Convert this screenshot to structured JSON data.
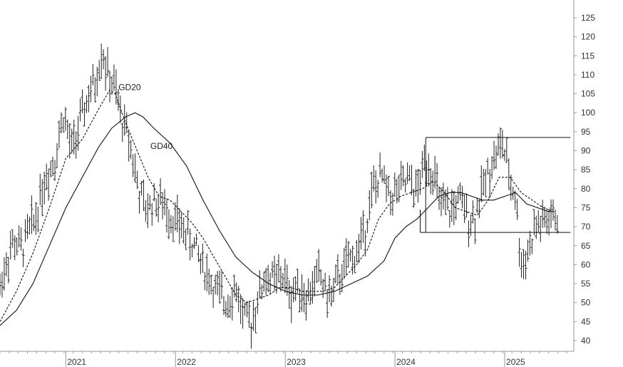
{
  "chart_data": {
    "type": "ohlc",
    "title": "",
    "xlabel": "",
    "ylabel": "",
    "ylim": [
      37,
      128
    ],
    "y_ticks": [
      40,
      45,
      50,
      55,
      60,
      65,
      70,
      75,
      80,
      85,
      90,
      95,
      100,
      105,
      110,
      115,
      120,
      125
    ],
    "x_range": [
      2020.4,
      2025.63
    ],
    "x_ticks": [
      {
        "year": 2021,
        "label": "2021"
      },
      {
        "year": 2022,
        "label": "2022"
      },
      {
        "year": 2023,
        "label": "2023"
      },
      {
        "year": 2024,
        "label": "2024"
      },
      {
        "year": 2025,
        "label": "2025"
      }
    ],
    "grid": false,
    "price_anchors": [
      [
        2020.4,
        54
      ],
      [
        2020.45,
        60
      ],
      [
        2020.52,
        66
      ],
      [
        2020.6,
        64
      ],
      [
        2020.65,
        68
      ],
      [
        2020.72,
        72
      ],
      [
        2020.8,
        82
      ],
      [
        2020.9,
        88
      ],
      [
        2020.98,
        100
      ],
      [
        2021.05,
        90
      ],
      [
        2021.12,
        96
      ],
      [
        2021.2,
        104
      ],
      [
        2021.27,
        108
      ],
      [
        2021.33,
        117
      ],
      [
        2021.38,
        110
      ],
      [
        2021.45,
        106
      ],
      [
        2021.5,
        99
      ],
      [
        2021.58,
        93
      ],
      [
        2021.66,
        80
      ],
      [
        2021.73,
        74
      ],
      [
        2021.8,
        77
      ],
      [
        2021.88,
        76
      ],
      [
        2021.98,
        72
      ],
      [
        2022.05,
        70
      ],
      [
        2022.15,
        66
      ],
      [
        2022.25,
        60
      ],
      [
        2022.35,
        54
      ],
      [
        2022.45,
        50
      ],
      [
        2022.55,
        54
      ],
      [
        2022.62,
        46
      ],
      [
        2022.68,
        44
      ],
      [
        2022.75,
        51
      ],
      [
        2022.82,
        57
      ],
      [
        2022.9,
        56
      ],
      [
        2022.98,
        57
      ],
      [
        2023.05,
        52
      ],
      [
        2023.12,
        55
      ],
      [
        2023.2,
        51
      ],
      [
        2023.3,
        58
      ],
      [
        2023.4,
        51
      ],
      [
        2023.5,
        57
      ],
      [
        2023.58,
        61
      ],
      [
        2023.65,
        63
      ],
      [
        2023.72,
        69
      ],
      [
        2023.8,
        80
      ],
      [
        2023.88,
        83
      ],
      [
        2023.95,
        78
      ],
      [
        2024.05,
        80
      ],
      [
        2024.12,
        82
      ],
      [
        2024.2,
        79
      ],
      [
        2024.28,
        88
      ],
      [
        2024.35,
        84
      ],
      [
        2024.42,
        75
      ],
      [
        2024.5,
        74
      ],
      [
        2024.58,
        77
      ],
      [
        2024.66,
        73
      ],
      [
        2024.72,
        72
      ],
      [
        2024.8,
        80
      ],
      [
        2024.88,
        87
      ],
      [
        2024.98,
        92
      ],
      [
        2025.05,
        82
      ],
      [
        2025.1,
        78
      ],
      [
        2025.15,
        60
      ],
      [
        2025.22,
        64
      ],
      [
        2025.28,
        70
      ],
      [
        2025.35,
        71
      ],
      [
        2025.42,
        72
      ],
      [
        2025.48,
        73
      ]
    ],
    "moving_averages": [
      {
        "name": "GD20",
        "style": "dashed",
        "points": [
          [
            2020.4,
            45
          ],
          [
            2020.55,
            53
          ],
          [
            2020.7,
            63
          ],
          [
            2020.85,
            75
          ],
          [
            2021.0,
            88
          ],
          [
            2021.15,
            93
          ],
          [
            2021.3,
            101
          ],
          [
            2021.4,
            106
          ],
          [
            2021.45,
            105
          ],
          [
            2021.55,
            97
          ],
          [
            2021.65,
            90
          ],
          [
            2021.75,
            83
          ],
          [
            2021.85,
            78
          ],
          [
            2021.95,
            77
          ],
          [
            2022.05,
            74
          ],
          [
            2022.15,
            71
          ],
          [
            2022.25,
            67
          ],
          [
            2022.35,
            62
          ],
          [
            2022.45,
            57
          ],
          [
            2022.55,
            52
          ],
          [
            2022.65,
            50
          ],
          [
            2022.75,
            51
          ],
          [
            2022.85,
            52
          ],
          [
            2022.95,
            54
          ],
          [
            2023.05,
            54
          ],
          [
            2023.15,
            53
          ],
          [
            2023.25,
            53
          ],
          [
            2023.35,
            53
          ],
          [
            2023.45,
            54
          ],
          [
            2023.55,
            57
          ],
          [
            2023.65,
            60
          ],
          [
            2023.75,
            64
          ],
          [
            2023.85,
            72
          ],
          [
            2023.95,
            76
          ],
          [
            2024.05,
            78
          ],
          [
            2024.15,
            79
          ],
          [
            2024.25,
            80
          ],
          [
            2024.35,
            82
          ],
          [
            2024.45,
            79
          ],
          [
            2024.55,
            75
          ],
          [
            2024.65,
            74
          ],
          [
            2024.75,
            73
          ],
          [
            2024.85,
            77
          ],
          [
            2024.95,
            83
          ],
          [
            2025.05,
            83
          ],
          [
            2025.15,
            79
          ],
          [
            2025.25,
            77
          ],
          [
            2025.35,
            75
          ],
          [
            2025.45,
            74
          ]
        ]
      },
      {
        "name": "GD40",
        "style": "solid",
        "points": [
          [
            2020.4,
            44
          ],
          [
            2020.55,
            48
          ],
          [
            2020.7,
            55
          ],
          [
            2020.85,
            65
          ],
          [
            2021.0,
            75
          ],
          [
            2021.15,
            83
          ],
          [
            2021.3,
            91
          ],
          [
            2021.42,
            96
          ],
          [
            2021.55,
            99
          ],
          [
            2021.63,
            100
          ],
          [
            2021.7,
            99
          ],
          [
            2021.8,
            96
          ],
          [
            2021.95,
            92
          ],
          [
            2022.1,
            86
          ],
          [
            2022.25,
            77
          ],
          [
            2022.4,
            69
          ],
          [
            2022.55,
            62
          ],
          [
            2022.7,
            58
          ],
          [
            2022.85,
            55
          ],
          [
            2023.0,
            53
          ],
          [
            2023.15,
            52
          ],
          [
            2023.3,
            52
          ],
          [
            2023.45,
            53
          ],
          [
            2023.6,
            55
          ],
          [
            2023.75,
            57
          ],
          [
            2023.9,
            61
          ],
          [
            2024.0,
            67
          ],
          [
            2024.1,
            70
          ],
          [
            2024.2,
            72
          ],
          [
            2024.3,
            75
          ],
          [
            2024.4,
            78
          ],
          [
            2024.5,
            79
          ],
          [
            2024.6,
            79
          ],
          [
            2024.7,
            78
          ],
          [
            2024.8,
            77
          ],
          [
            2024.9,
            77
          ],
          [
            2025.0,
            78
          ],
          [
            2025.1,
            79
          ],
          [
            2025.2,
            76
          ],
          [
            2025.3,
            75
          ],
          [
            2025.4,
            74
          ],
          [
            2025.45,
            74
          ]
        ]
      }
    ],
    "rectangle": {
      "x_start": 2024.28,
      "x_end": 2025.6,
      "y_low": 68.5,
      "y_high": 93.5
    },
    "left_bracket": {
      "x": 2024.23,
      "y_low": 68.5,
      "y_high": 74.5
    },
    "annotations": [
      {
        "text": "GD20",
        "x": 2021.48,
        "y": 106
      },
      {
        "text": "GD40",
        "x": 2021.77,
        "y": 90.5
      }
    ],
    "colors": {
      "bars": "#222222",
      "lines": "#111111",
      "axis": "#999999",
      "text": "#333333"
    }
  }
}
